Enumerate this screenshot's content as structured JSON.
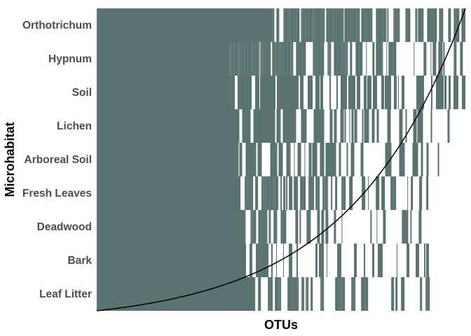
{
  "chart_data": {
    "type": "heatmap",
    "title": "",
    "xlabel": "OTUs",
    "ylabel": "Microhabitat",
    "categories": [
      "Orthotrichum",
      "Hypnum",
      "Soil",
      "Lichen",
      "Arboreal Soil",
      "Fresh Leaves",
      "Deadwood",
      "Bark",
      "Leaf Litter"
    ],
    "cell_color": "#5b7370",
    "background_color": "#ffffff",
    "curve_color": "#000000",
    "legend": "none",
    "grid": false,
    "x_range": [
      0,
      1
    ],
    "series": [
      {
        "category": "Orthotrichum",
        "solid_fraction": 0.476,
        "present_fraction": 0.84,
        "extent_fraction": 1.0
      },
      {
        "category": "Hypnum",
        "solid_fraction": 0.36,
        "present_fraction": 0.74,
        "extent_fraction": 1.0
      },
      {
        "category": "Soil",
        "solid_fraction": 0.365,
        "present_fraction": 0.7,
        "extent_fraction": 1.0
      },
      {
        "category": "Lichen",
        "solid_fraction": 0.385,
        "present_fraction": 0.66,
        "extent_fraction": 0.96
      },
      {
        "category": "Arboreal Soil",
        "solid_fraction": 0.385,
        "present_fraction": 0.56,
        "extent_fraction": 0.93
      },
      {
        "category": "Fresh Leaves",
        "solid_fraction": 0.39,
        "present_fraction": 0.52,
        "extent_fraction": 0.915
      },
      {
        "category": "Deadwood",
        "solid_fraction": 0.4,
        "present_fraction": 0.48,
        "extent_fraction": 0.895
      },
      {
        "category": "Bark",
        "solid_fraction": 0.405,
        "present_fraction": 0.45,
        "extent_fraction": 0.905
      },
      {
        "category": "Leaf Litter",
        "solid_fraction": 0.43,
        "present_fraction": 0.4,
        "extent_fraction": 0.905
      }
    ]
  }
}
